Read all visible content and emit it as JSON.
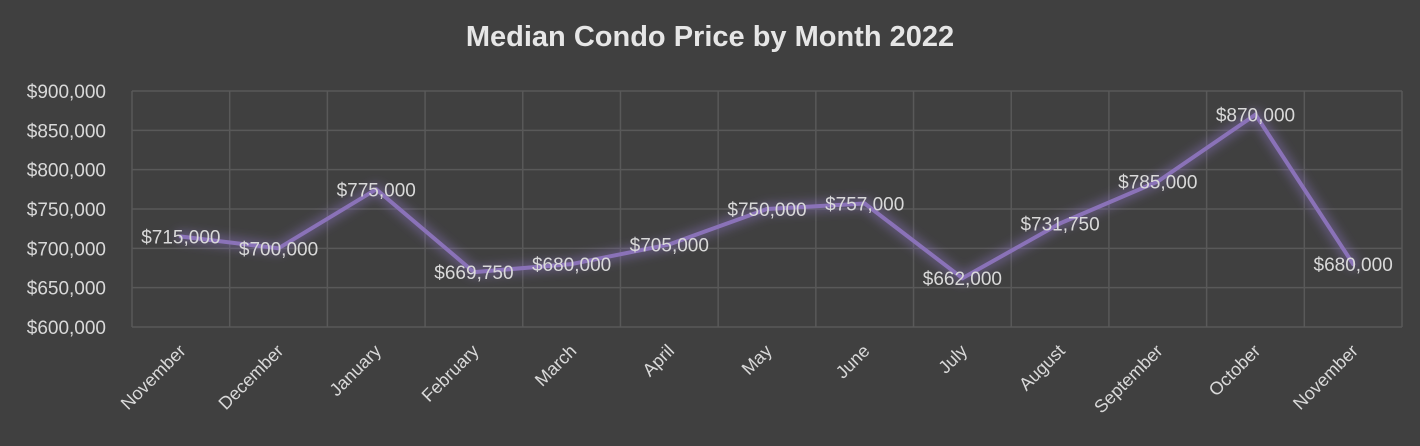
{
  "chart_data": {
    "type": "line",
    "title": "Median Condo Price by Month 2022",
    "xlabel": "",
    "ylabel": "",
    "categories": [
      "November",
      "December",
      "January",
      "February",
      "March",
      "April",
      "May",
      "June",
      "July",
      "August",
      "September",
      "October",
      "November"
    ],
    "series": [
      {
        "values": [
          715000,
          700000,
          775000,
          669750,
          680000,
          705000,
          750000,
          757000,
          662000,
          731750,
          785000,
          870000,
          680000
        ]
      }
    ],
    "data_labels": [
      "$715,000",
      "$700,000",
      "$775,000",
      "$669,750",
      "$680,000",
      "$705,000",
      "$750,000",
      "$757,000",
      "$662,000",
      "$731,750",
      "$785,000",
      "$870,000",
      "$680,000"
    ],
    "ylim": [
      600000,
      900000
    ],
    "yticks": [
      600000,
      650000,
      700000,
      750000,
      800000,
      850000,
      900000
    ],
    "ytick_labels": [
      "$600,000",
      "$650,000",
      "$700,000",
      "$750,000",
      "$800,000",
      "$850,000",
      "$900,000"
    ],
    "grid": true,
    "legend": "none",
    "colors": {
      "background": "#404040",
      "line": "#8a72b8",
      "grid": "#595959",
      "text": "#d9d9d9",
      "title": "#e6e6e6"
    }
  }
}
